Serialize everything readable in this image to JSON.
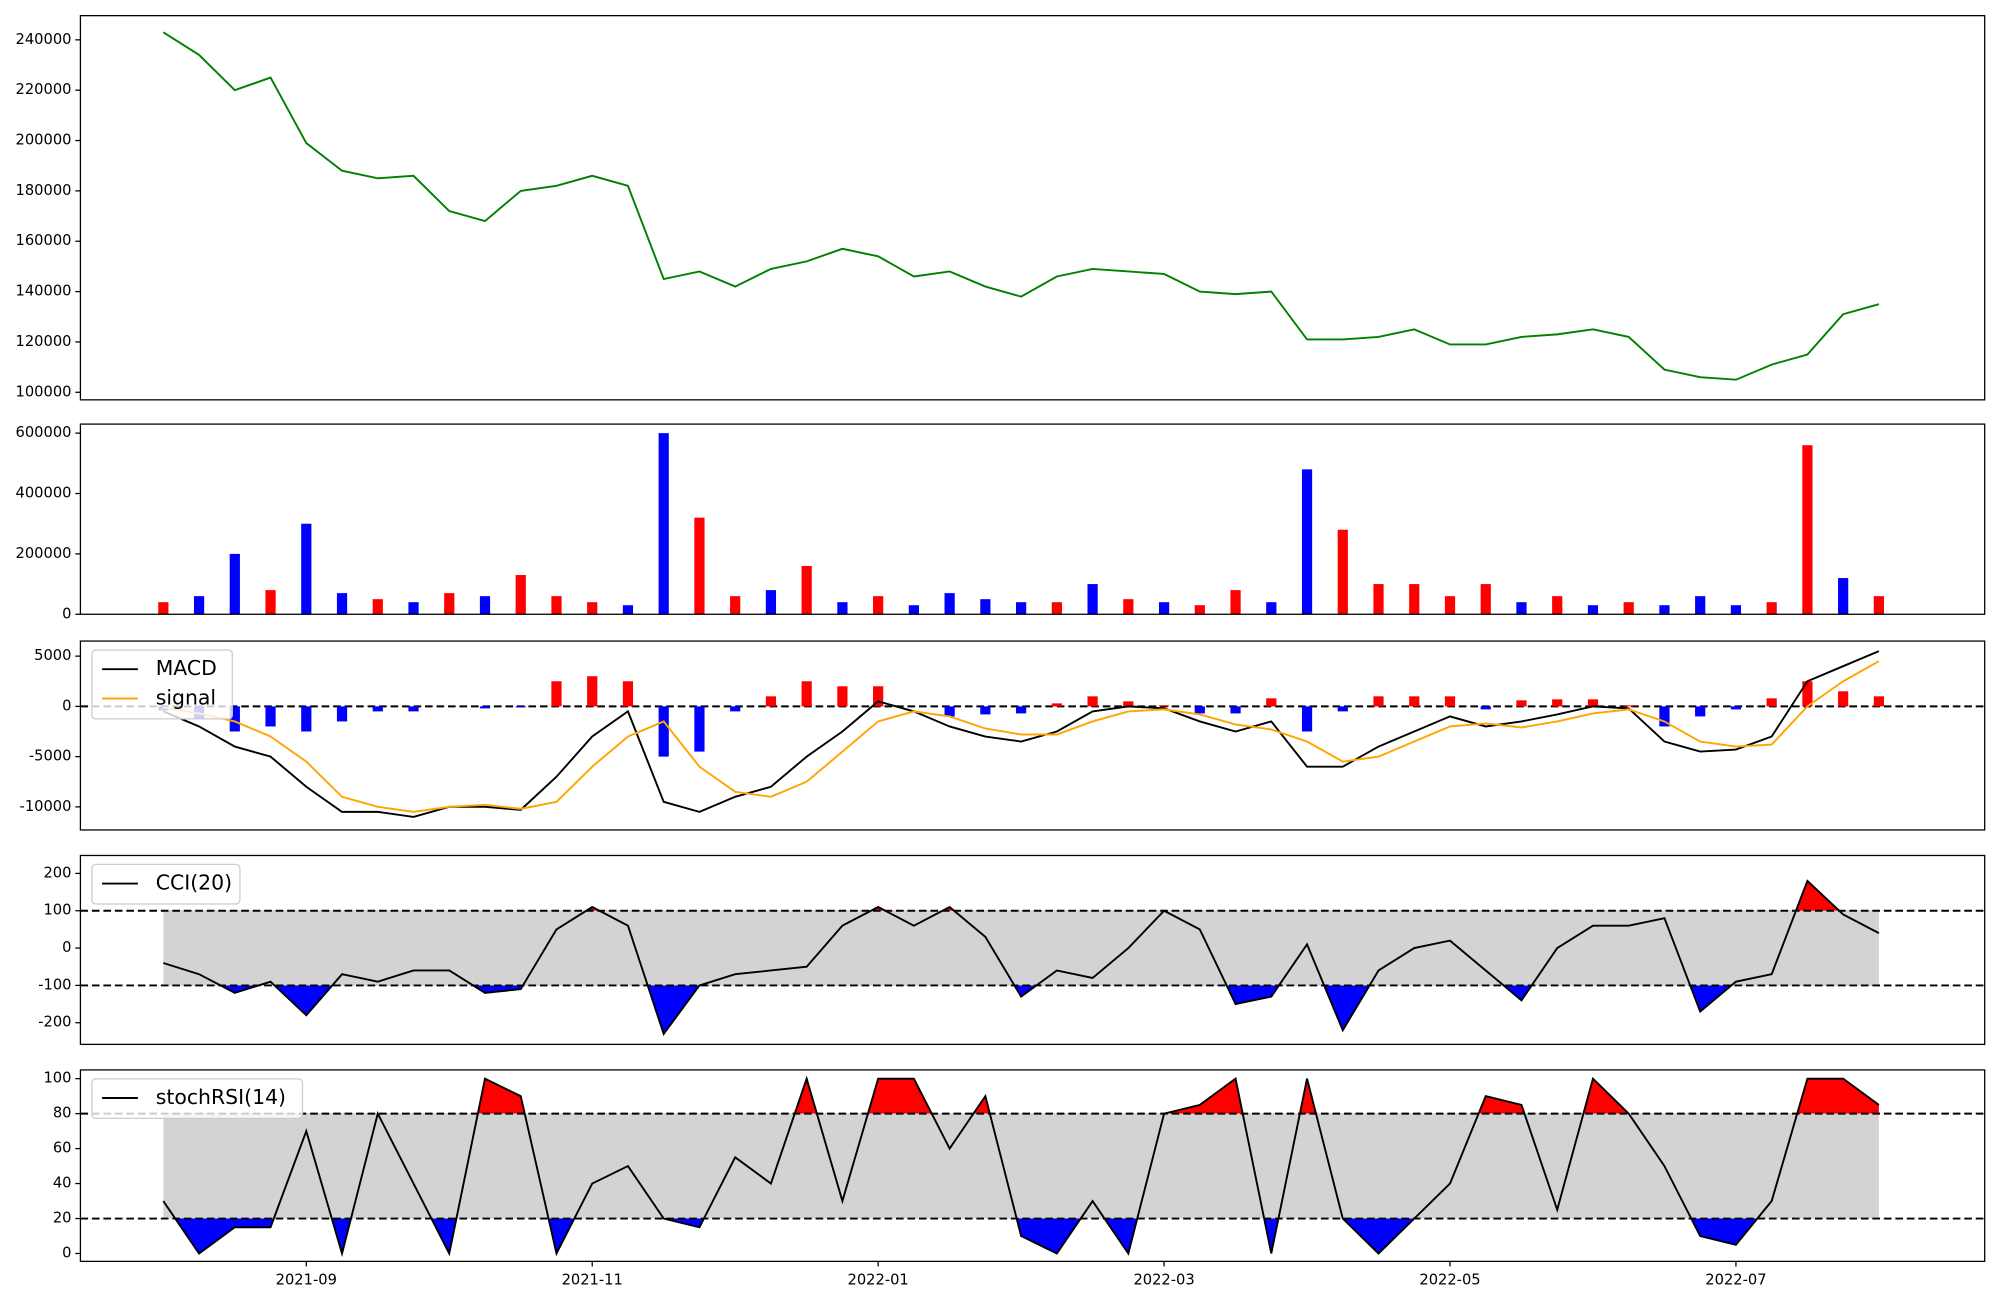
{
  "chart_data": [
    {
      "type": "line",
      "ylim": [
        97000,
        249600
      ],
      "yticks": [
        100000,
        120000,
        140000,
        160000,
        180000,
        200000,
        220000,
        240000
      ],
      "series": [
        {
          "color": "green",
          "values": [
            243000,
            234000,
            220000,
            225000,
            199000,
            188000,
            185000,
            186000,
            172000,
            168000,
            180000,
            182000,
            186000,
            182000,
            145000,
            148000,
            142000,
            149000,
            152000,
            157000,
            154000,
            146000,
            148000,
            142000,
            138000,
            146000,
            149000,
            148000,
            147000,
            140000,
            139000,
            140000,
            121000,
            121000,
            122000,
            125000,
            119000,
            119000,
            122000,
            123000,
            125000,
            122000,
            109000,
            106000,
            105000,
            111000,
            115000,
            131000,
            135000
          ]
        }
      ]
    },
    {
      "type": "bar",
      "ylim": [
        0,
        630000
      ],
      "yticks": [
        0,
        200000,
        400000,
        600000
      ],
      "values": [
        40000,
        60000,
        200000,
        80000,
        300000,
        70000,
        50000,
        40000,
        70000,
        60000,
        130000,
        60000,
        40000,
        30000,
        600000,
        320000,
        60000,
        80000,
        160000,
        40000,
        60000,
        30000,
        70000,
        50000,
        40000,
        40000,
        100000,
        50000,
        40000,
        30000,
        80000,
        40000,
        480000,
        280000,
        100000,
        100000,
        60000,
        100000,
        40000,
        60000,
        30000,
        40000,
        30000,
        60000,
        30000,
        40000,
        560000,
        120000,
        60000
      ],
      "colors": [
        "red",
        "blue",
        "blue",
        "red",
        "blue",
        "blue",
        "red",
        "blue",
        "red",
        "blue",
        "red",
        "red",
        "red",
        "blue",
        "blue",
        "red",
        "red",
        "blue",
        "red",
        "blue",
        "red",
        "blue",
        "blue",
        "blue",
        "blue",
        "red",
        "blue",
        "red",
        "blue",
        "red",
        "red",
        "blue",
        "blue",
        "red",
        "red",
        "red",
        "red",
        "red",
        "blue",
        "red",
        "blue",
        "red",
        "blue",
        "blue",
        "blue",
        "red",
        "red",
        "blue",
        "red"
      ]
    },
    {
      "type": "line",
      "ylim": [
        -12300,
        6500
      ],
      "yticks": [
        -10000,
        -5000,
        0,
        5000
      ],
      "hlines": [
        0
      ],
      "histogram": {
        "pos_color": "red",
        "neg_color": "blue",
        "values": [
          -400,
          -1300,
          -2500,
          -2000,
          -2500,
          -1500,
          -500,
          -500,
          0,
          -200,
          -100,
          2500,
          3000,
          2500,
          -5000,
          -4500,
          -500,
          1000,
          2500,
          2000,
          2000,
          0,
          -1000,
          -800,
          -700,
          300,
          1000,
          500,
          100,
          -700,
          -700,
          800,
          -2500,
          -500,
          1000,
          1000,
          1000,
          -300,
          600,
          700,
          700,
          100,
          -2000,
          -1000,
          -300,
          800,
          2500,
          1500,
          1000
        ]
      },
      "series": [
        {
          "name": "MACD",
          "color": "black",
          "values": [
            -500,
            -2000,
            -4000,
            -5000,
            -8000,
            -10500,
            -10500,
            -11000,
            -10000,
            -10000,
            -10300,
            -7000,
            -3000,
            -500,
            -9500,
            -10500,
            -9000,
            -8000,
            -5000,
            -2500,
            500,
            -500,
            -2000,
            -3000,
            -3500,
            -2500,
            -500,
            0,
            -200,
            -1500,
            -2500,
            -1500,
            -6000,
            -6000,
            -4000,
            -2500,
            -1000,
            -2000,
            -1500,
            -800,
            0,
            -200,
            -3500,
            -4500,
            -4300,
            -3000,
            2500,
            4000,
            5500
          ]
        },
        {
          "name": "signal",
          "color": "orange",
          "values": [
            -100,
            -700,
            -1500,
            -3000,
            -5500,
            -9000,
            -10000,
            -10500,
            -10000,
            -9800,
            -10200,
            -9500,
            -6000,
            -3000,
            -1500,
            -6000,
            -8500,
            -9000,
            -7500,
            -4500,
            -1500,
            -500,
            -1000,
            -2200,
            -2800,
            -2800,
            -1500,
            -500,
            -300,
            -800,
            -1800,
            -2300,
            -3500,
            -5500,
            -5000,
            -3500,
            -2000,
            -1700,
            -2100,
            -1500,
            -700,
            -300,
            -1500,
            -3500,
            -4000,
            -3800,
            0,
            2500,
            4500
          ]
        }
      ]
    },
    {
      "type": "line",
      "ylim": [
        -258,
        248
      ],
      "yticks": [
        -200,
        -100,
        0,
        100,
        200
      ],
      "band": [
        -100,
        100
      ],
      "band_color": "lightgray",
      "upper_color": "red",
      "lower_color": "blue",
      "series": [
        {
          "name": "CCI(20)",
          "color": "black",
          "values": [
            -40,
            -70,
            -120,
            -90,
            -180,
            -70,
            -90,
            -60,
            -60,
            -120,
            -110,
            50,
            110,
            60,
            -230,
            -100,
            -70,
            -60,
            -50,
            60,
            110,
            60,
            110,
            30,
            -130,
            -60,
            -80,
            0,
            100,
            50,
            -150,
            -130,
            10,
            -220,
            -60,
            0,
            20,
            -60,
            -140,
            0,
            60,
            60,
            80,
            -170,
            -90,
            -70,
            180,
            90,
            40
          ]
        }
      ]
    },
    {
      "type": "line",
      "ylim": [
        -4.5,
        105
      ],
      "yticks": [
        0,
        20,
        40,
        60,
        80,
        100
      ],
      "band": [
        20,
        80
      ],
      "band_color": "lightgray",
      "upper_color": "red",
      "lower_color": "blue",
      "series": [
        {
          "name": "stochRSI(14)",
          "color": "black",
          "values": [
            30,
            0,
            15,
            15,
            70,
            0,
            80,
            40,
            0,
            100,
            90,
            0,
            40,
            50,
            20,
            15,
            55,
            40,
            100,
            30,
            100,
            100,
            60,
            90,
            10,
            0,
            30,
            0,
            80,
            85,
            100,
            0,
            100,
            20,
            0,
            20,
            40,
            90,
            85,
            25,
            100,
            80,
            50,
            10,
            5,
            30,
            100,
            100,
            85
          ]
        }
      ],
      "x": [
        7,
        7.25,
        7.5,
        7.75,
        8,
        8.25,
        8.5,
        8.75,
        9,
        9.25,
        9.5,
        9.75,
        10,
        10.25,
        10.5,
        10.75,
        11,
        11.25,
        11.5,
        11.75,
        12,
        12.25,
        12.5,
        12.75,
        13,
        13.25,
        13.5,
        13.75,
        14,
        14.25,
        14.5,
        14.75,
        15,
        15.25,
        15.5,
        15.75,
        16,
        16.25,
        16.5,
        16.75,
        17,
        17.25,
        17.5,
        17.75,
        18,
        18.25,
        18.5,
        18.75,
        19
      ],
      "xlim": [
        6.42,
        19.74
      ],
      "xticks": [
        {
          "value": 8,
          "label": "2021-09"
        },
        {
          "value": 10,
          "label": "2021-11"
        },
        {
          "value": 12,
          "label": "2022-01"
        },
        {
          "value": 14,
          "label": "2022-03"
        },
        {
          "value": 16,
          "label": "2022-05"
        },
        {
          "value": 18,
          "label": "2022-07"
        }
      ]
    }
  ]
}
